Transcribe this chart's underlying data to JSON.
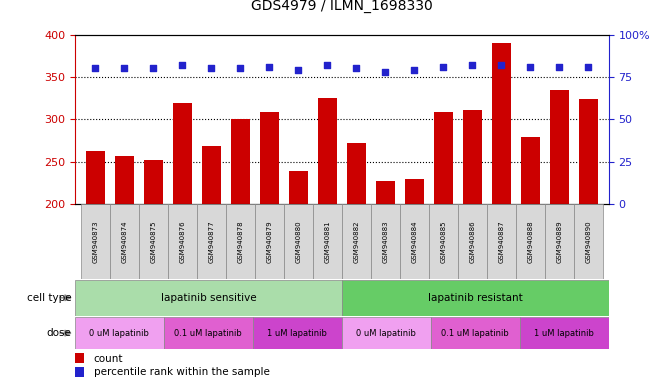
{
  "title": "GDS4979 / ILMN_1698330",
  "samples": [
    "GSM940873",
    "GSM940874",
    "GSM940875",
    "GSM940876",
    "GSM940877",
    "GSM940878",
    "GSM940879",
    "GSM940880",
    "GSM940881",
    "GSM940882",
    "GSM940883",
    "GSM940884",
    "GSM940885",
    "GSM940886",
    "GSM940887",
    "GSM940888",
    "GSM940889",
    "GSM940890"
  ],
  "counts": [
    263,
    257,
    252,
    319,
    268,
    300,
    309,
    239,
    325,
    272,
    227,
    229,
    308,
    311,
    390,
    279,
    334,
    324
  ],
  "pct_vals": [
    80,
    80,
    80,
    82,
    80,
    80,
    81,
    79,
    82,
    80,
    78,
    79,
    81,
    82,
    82,
    81,
    81,
    81
  ],
  "bar_color": "#cc0000",
  "dot_color": "#2222cc",
  "ylim_left": [
    200,
    400
  ],
  "ylim_right": [
    0,
    100
  ],
  "yticks_left": [
    200,
    250,
    300,
    350,
    400
  ],
  "yticks_right": [
    0,
    25,
    50,
    75,
    100
  ],
  "grid_values": [
    250,
    300,
    350
  ],
  "sensitive_color": "#aaddaa",
  "resistant_color": "#66cc66",
  "dose_colors": [
    "#f0a0f0",
    "#e060d0",
    "#cc44cc",
    "#f0a0f0",
    "#e060d0",
    "#cc44cc"
  ],
  "dose_labels": [
    "0 uM lapatinib",
    "0.1 uM lapatinib",
    "1 uM lapatinib",
    "0 uM lapatinib",
    "0.1 uM lapatinib",
    "1 uM lapatinib"
  ],
  "dose_starts": [
    0,
    3,
    6,
    9,
    12,
    15
  ],
  "dose_widths": [
    3,
    3,
    3,
    3,
    3,
    3
  ],
  "legend_count_label": "count",
  "legend_pct_label": "percentile rank within the sample",
  "cell_type_label": "cell type",
  "dose_label": "dose",
  "title_fontsize": 10,
  "left_axis_color": "#cc0000",
  "right_axis_color": "#2222cc",
  "xticklabel_bg": "#d8d8d8",
  "xticklabel_border": "#888888"
}
